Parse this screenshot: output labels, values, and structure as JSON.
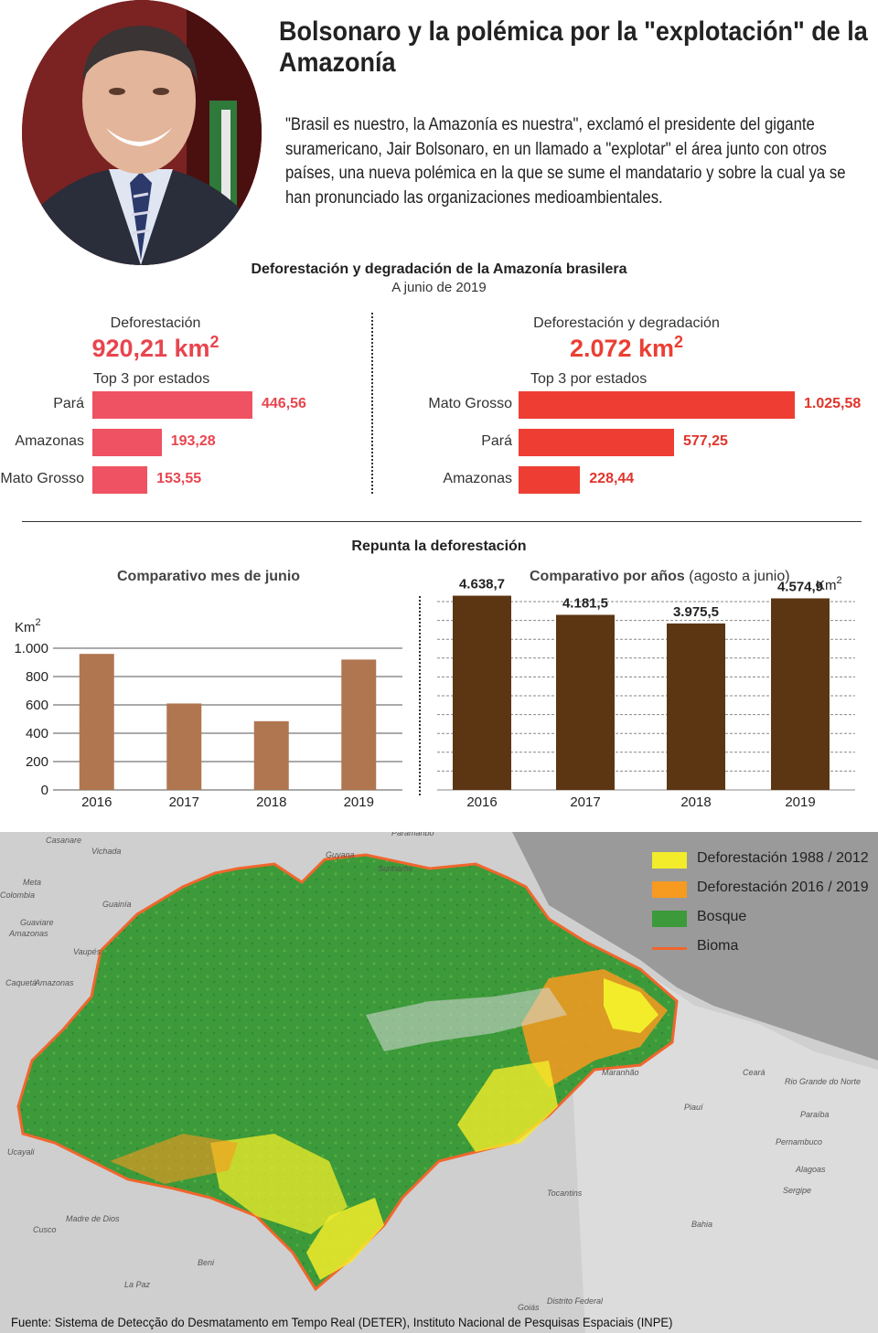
{
  "header": {
    "title": "Bolsonaro y la polémica por la \"explotación\" de la Amazonía",
    "intro": "\"Brasil es nuestro, la Amazonía es nuestra\", exclamó el presidente del gigante suramericano, Jair Bolsonaro, en un llamado a \"explotar\" el área junto con otros países, una nueva polémica en la que se sume el mandatario y sobre la cual ya se han pronunciado las organizaciones medioambientales."
  },
  "section1": {
    "title": "Deforestación y degradación de la Amazonía brasilera",
    "subtitle": "A junio de 2019",
    "top3_label": "Top 3 por estados"
  },
  "section2": {
    "title": "Repunta la deforestación"
  },
  "chart_data": [
    {
      "type": "bar",
      "orientation": "horizontal",
      "kpi_label": "Deforestación",
      "kpi_value": "920,21 km",
      "kpi_unit_sup": "2",
      "categories": [
        "Pará",
        "Amazonas",
        "Mato Grosso"
      ],
      "values": [
        446.56,
        193.28,
        153.55
      ],
      "value_labels": [
        "446,56",
        "193,28",
        "153,55"
      ],
      "color": "#ef5262",
      "label_color": "#e8454f"
    },
    {
      "type": "bar",
      "orientation": "horizontal",
      "kpi_label": "Deforestación y degradación",
      "kpi_value": "2.072 km",
      "kpi_unit_sup": "2",
      "categories": [
        "Mato Grosso",
        "Pará",
        "Amazonas"
      ],
      "values": [
        1025.58,
        577.25,
        228.44
      ],
      "value_labels": [
        "1.025,58",
        "577,25",
        "228,44"
      ],
      "color": "#ee3e33",
      "label_color": "#e0342b"
    },
    {
      "type": "bar",
      "title": "Comparativo mes de junio",
      "ylabel": "Km",
      "ylabel_sup": "2",
      "categories": [
        "2016",
        "2017",
        "2018",
        "2019"
      ],
      "values": [
        960,
        610,
        485,
        920
      ],
      "yticks": [
        0,
        200,
        400,
        600,
        800,
        1000
      ],
      "ytick_labels": [
        "0",
        "200",
        "400",
        "600",
        "800",
        "1.000"
      ],
      "ylim": [
        0,
        1000
      ],
      "color": "#b07650"
    },
    {
      "type": "bar",
      "title": "Comparativo por años",
      "title_note": "(agosto a junio)",
      "ylabel": "Km",
      "ylabel_sup": "2",
      "categories": [
        "2016",
        "2017",
        "2018",
        "2019"
      ],
      "values": [
        4638.7,
        4181.5,
        3975.5,
        4574.9
      ],
      "value_labels": [
        "4.638,7",
        "4.181,5",
        "3.975,5",
        "4.574,9"
      ],
      "ylim": [
        0,
        5000
      ],
      "grid": true,
      "color": "#5c3613"
    }
  ],
  "map": {
    "legend": [
      {
        "label": "Deforestación 1988 / 2012",
        "color": "#f3ec2a"
      },
      {
        "label": "Deforestación 2016 / 2019",
        "color": "#f79a20"
      },
      {
        "label": "Bosque",
        "color": "#3c9a3a"
      },
      {
        "label": "Bioma",
        "color": "#f0662d"
      }
    ],
    "places": [
      "Casanare",
      "Vichada",
      "Guyana",
      "Suriname",
      "Paramaribo",
      "Meta",
      "Colombia",
      "Guaviare",
      "Amazonas",
      "Guainía",
      "Vaupés",
      "Caquetá",
      "Amazonas",
      "Maranhão",
      "Ceará",
      "Rio Grande do Norte",
      "Piauí",
      "Paraíba",
      "Pernambuco",
      "Alagoas",
      "Sergipe",
      "Tocantins",
      "Bahia",
      "Madre de Dios",
      "Cusco",
      "Beni",
      "La Paz",
      "Goiás",
      "Distrito Federal",
      "Ucayali"
    ]
  },
  "source": "Fuente: Sistema de Detecção do Desmatamento em Tempo Real (DETER), Instituto Nacional de Pesquisas Espaciais (INPE)"
}
